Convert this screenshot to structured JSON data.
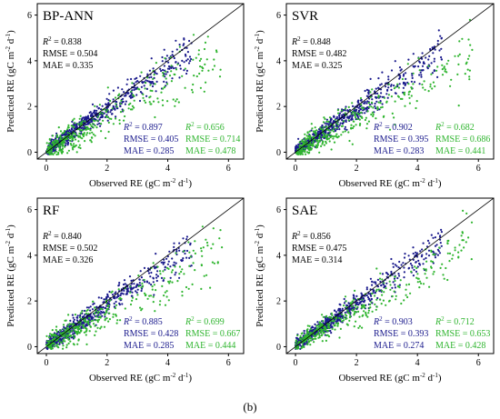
{
  "colors": {
    "blue": "#1a1a8c",
    "green": "#2fb52f",
    "black": "#000000",
    "axis": "#000000",
    "background": "#ffffff"
  },
  "figure_caption": "(b)",
  "chart_data": [
    {
      "type": "scatter",
      "title": "BP-ANN",
      "xlabel": "Observed RE (gC m⁻² d⁻¹)",
      "ylabel": "Predicted RE (gC m⁻² d⁻¹)",
      "xlim": [
        -0.3,
        6.5
      ],
      "ylim": [
        -0.3,
        6.5
      ],
      "x_ticks": [
        "0",
        "2",
        "4",
        "6"
      ],
      "y_ticks": [
        "0",
        "2",
        "4",
        "6"
      ],
      "grid": false,
      "one_to_one_line": true,
      "overall_stats": {
        "r2": "R² = 0.838",
        "rmse": "RMSE = 0.504",
        "mae": "MAE = 0.335"
      },
      "series": [
        {
          "color": "#1a1a8c",
          "r2": "R² = 0.897",
          "rmse": "RMSE = 0.405",
          "mae": "MAE = 0.285",
          "seed": 11,
          "count": 620,
          "slope": 0.93,
          "spread": 0.3,
          "xmax": 4.8
        },
        {
          "color": "#2fb52f",
          "r2": "R² = 0.656",
          "rmse": "RMSE = 0.714",
          "mae": "MAE = 0.478",
          "seed": 12,
          "count": 360,
          "slope": 0.75,
          "spread": 0.55,
          "xmax": 5.8
        }
      ]
    },
    {
      "type": "scatter",
      "title": "SVR",
      "xlabel": "Observed RE (gC m⁻² d⁻¹)",
      "ylabel": "Predicted RE (gC m⁻² d⁻¹)",
      "xlim": [
        -0.3,
        6.5
      ],
      "ylim": [
        -0.3,
        6.5
      ],
      "x_ticks": [
        "0",
        "2",
        "4",
        "6"
      ],
      "y_ticks": [
        "0",
        "2",
        "4",
        "6"
      ],
      "grid": false,
      "one_to_one_line": true,
      "overall_stats": {
        "r2": "R² = 0.848",
        "rmse": "RMSE = 0.482",
        "mae": "MAE = 0.325"
      },
      "series": [
        {
          "color": "#1a1a8c",
          "r2": "R² = 0.902",
          "rmse": "RMSE = 0.395",
          "mae": "MAE = 0.283",
          "seed": 21,
          "count": 620,
          "slope": 0.9,
          "spread": 0.3,
          "xmax": 4.8
        },
        {
          "color": "#2fb52f",
          "r2": "R² = 0.682",
          "rmse": "RMSE = 0.686",
          "mae": "MAE = 0.441",
          "seed": 22,
          "count": 360,
          "slope": 0.72,
          "spread": 0.5,
          "xmax": 5.8
        }
      ]
    },
    {
      "type": "scatter",
      "title": "RF",
      "xlabel": "Observed RE (gC m⁻² d⁻¹)",
      "ylabel": "Predicted RE (gC m⁻² d⁻¹)",
      "xlim": [
        -0.3,
        6.5
      ],
      "ylim": [
        -0.3,
        6.5
      ],
      "x_ticks": [
        "0",
        "2",
        "4",
        "6"
      ],
      "y_ticks": [
        "0",
        "2",
        "4",
        "6"
      ],
      "grid": false,
      "one_to_one_line": true,
      "overall_stats": {
        "r2": "R² = 0.840",
        "rmse": "RMSE = 0.502",
        "mae": "MAE = 0.326"
      },
      "series": [
        {
          "color": "#1a1a8c",
          "r2": "R² = 0.885",
          "rmse": "RMSE = 0.428",
          "mae": "MAE = 0.285",
          "seed": 31,
          "count": 620,
          "slope": 0.9,
          "spread": 0.32,
          "xmax": 4.8
        },
        {
          "color": "#2fb52f",
          "r2": "R² = 0.699",
          "rmse": "RMSE = 0.667",
          "mae": "MAE = 0.444",
          "seed": 32,
          "count": 360,
          "slope": 0.74,
          "spread": 0.5,
          "xmax": 5.8
        }
      ]
    },
    {
      "type": "scatter",
      "title": "SAE",
      "xlabel": "Observed RE (gC m⁻² d⁻¹)",
      "ylabel": "Predicted RE (gC m⁻² d⁻¹)",
      "xlim": [
        -0.3,
        6.5
      ],
      "ylim": [
        -0.3,
        6.5
      ],
      "x_ticks": [
        "0",
        "2",
        "4",
        "6"
      ],
      "y_ticks": [
        "0",
        "2",
        "4",
        "6"
      ],
      "grid": false,
      "one_to_one_line": true,
      "overall_stats": {
        "r2": "R² = 0.856",
        "rmse": "RMSE = 0.475",
        "mae": "MAE = 0.314"
      },
      "series": [
        {
          "color": "#1a1a8c",
          "r2": "R² = 0.903",
          "rmse": "RMSE = 0.393",
          "mae": "MAE = 0.274",
          "seed": 41,
          "count": 620,
          "slope": 0.93,
          "spread": 0.29,
          "xmax": 4.8
        },
        {
          "color": "#2fb52f",
          "r2": "R² = 0.712",
          "rmse": "RMSE = 0.653",
          "mae": "MAE = 0.428",
          "seed": 42,
          "count": 360,
          "slope": 0.8,
          "spread": 0.45,
          "xmax": 5.8
        }
      ]
    }
  ]
}
